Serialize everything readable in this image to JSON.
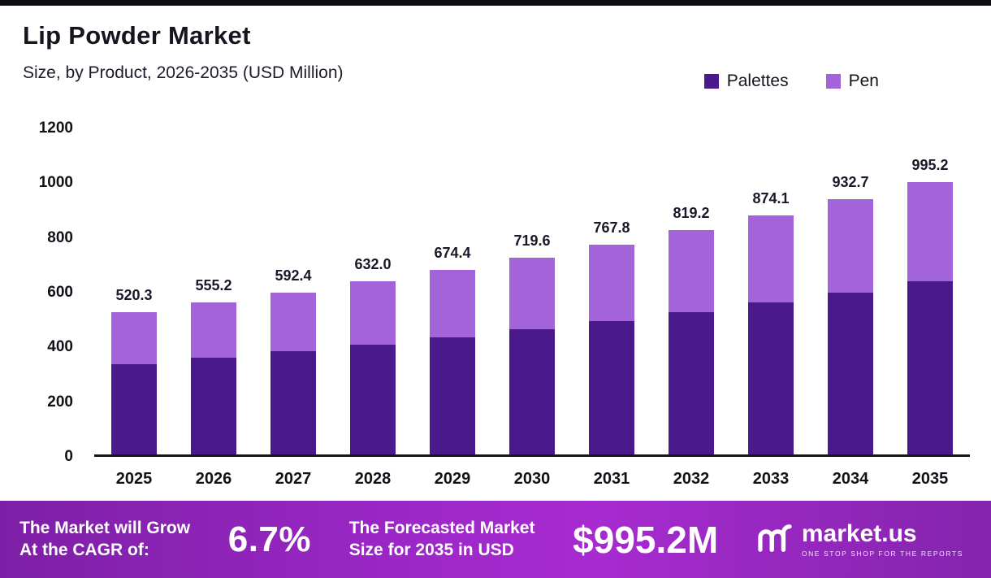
{
  "header": {
    "title": "Lip Powder Market",
    "subtitle": "Size, by Product, 2026-2035 (USD Million)"
  },
  "legend": [
    {
      "label": "Palettes",
      "color": "#4a1a8c"
    },
    {
      "label": "Pen",
      "color": "#a264d8"
    }
  ],
  "chart_data": {
    "type": "bar",
    "stacked": true,
    "title": "Lip Powder Market Size, by Product, 2026-2035 (USD Million)",
    "categories": [
      "2025",
      "2026",
      "2027",
      "2028",
      "2029",
      "2030",
      "2031",
      "2032",
      "2033",
      "2034",
      "2035"
    ],
    "series": [
      {
        "name": "Palettes",
        "color": "#4a1a8c",
        "values": [
          330.4,
          352.6,
          376.2,
          401.3,
          428.2,
          456.9,
          487.6,
          520.2,
          555.1,
          592.3,
          632.0
        ]
      },
      {
        "name": "Pen",
        "color": "#a264d8",
        "values": [
          189.9,
          202.6,
          216.2,
          230.7,
          246.2,
          262.7,
          280.2,
          299.0,
          319.0,
          340.4,
          363.2
        ]
      }
    ],
    "totals": [
      520.3,
      555.2,
      592.4,
      632.0,
      674.4,
      719.6,
      767.8,
      819.2,
      874.1,
      932.7,
      995.2
    ],
    "total_labels": [
      "520.3",
      "555.2",
      "592.4",
      "632.0",
      "674.4",
      "719.6",
      "767.8",
      "819.2",
      "874.1",
      "932.7",
      "995.2"
    ],
    "ylim": [
      0,
      1200
    ],
    "yticks": [
      0,
      200,
      400,
      600,
      800,
      1000,
      1200
    ],
    "grid": false,
    "legend_position": "top-right"
  },
  "banner": {
    "left_line1": "The Market will Grow",
    "left_line2": "At the CAGR of:",
    "cagr": "6.7%",
    "mid_line1": "The Forecasted Market",
    "mid_line2": "Size for 2035 in USD",
    "value": "$995.2M",
    "brand": "market.us",
    "tagline": "ONE STOP SHOP FOR THE REPORTS"
  }
}
